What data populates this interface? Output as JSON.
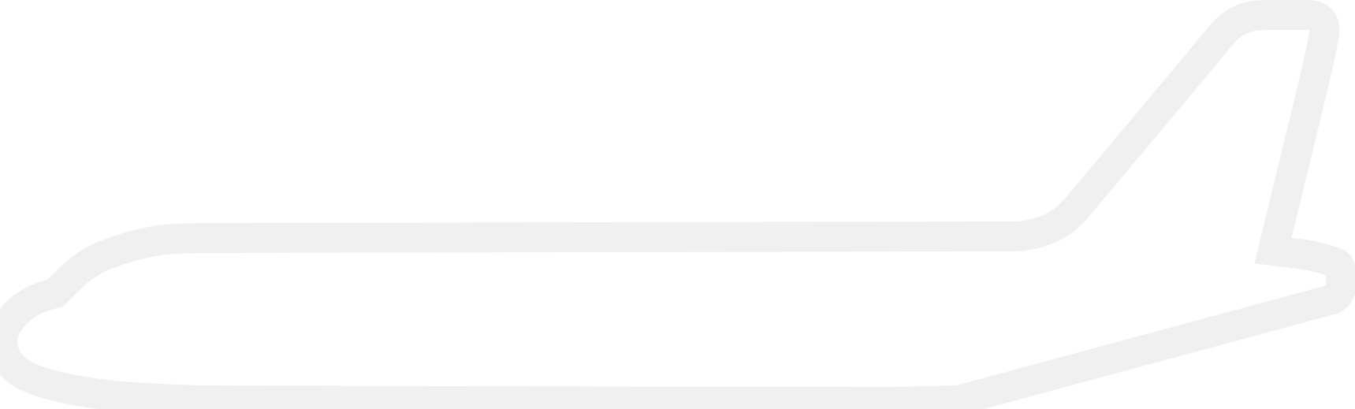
{
  "artwork": {
    "subject": "airplane-outline",
    "stroke_color": "#f0f0f0",
    "fill_color": "#ffffff",
    "background_color": "#ffffff"
  }
}
